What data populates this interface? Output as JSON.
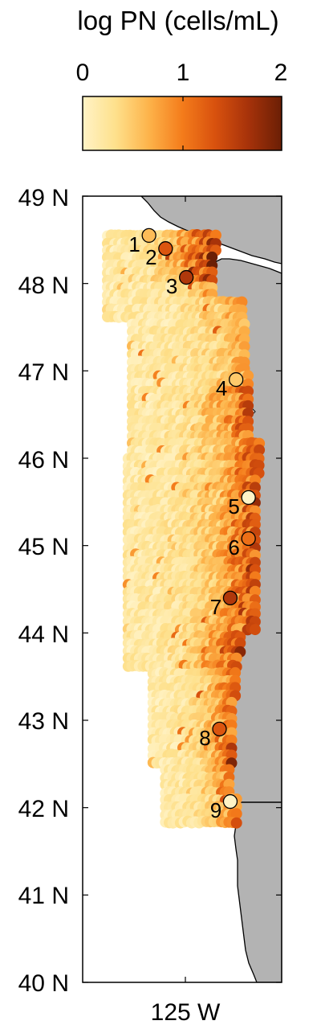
{
  "colorbar": {
    "title": "log PN (cells/mL)",
    "min": 0,
    "max": 2,
    "ticks": [
      "0",
      "1",
      "2"
    ],
    "colors": [
      "#fff3c6",
      "#fee08b",
      "#fdb34a",
      "#f47c1b",
      "#d8510e",
      "#a6320a",
      "#6b1f05"
    ]
  },
  "map": {
    "lat_range": [
      40,
      49
    ],
    "lon_range": [
      -126.2,
      -123.8
    ],
    "lat_labels": [
      "49 N",
      "48 N",
      "47 N",
      "46 N",
      "45 N",
      "44 N",
      "43 N",
      "42 N",
      "41 N",
      "40 N"
    ],
    "lon_label": "125 W",
    "land_color": "#b3b3b3"
  },
  "stations": [
    {
      "label": "1",
      "lat": 48.55,
      "lon": -125.4,
      "value": 0.6
    },
    {
      "label": "2",
      "lat": 48.4,
      "lon": -125.2,
      "value": 1.3
    },
    {
      "label": "3",
      "lat": 48.07,
      "lon": -124.95,
      "value": 1.6
    },
    {
      "label": "4",
      "lat": 46.9,
      "lon": -124.35,
      "value": 0.5
    },
    {
      "label": "5",
      "lat": 45.55,
      "lon": -124.2,
      "value": 0.0
    },
    {
      "label": "6",
      "lat": 45.08,
      "lon": -124.2,
      "value": 1.1
    },
    {
      "label": "7",
      "lat": 44.4,
      "lon": -124.42,
      "value": 1.6
    },
    {
      "label": "8",
      "lat": 42.9,
      "lon": -124.55,
      "value": 1.3
    },
    {
      "label": "9",
      "lat": 42.07,
      "lon": -124.42,
      "value": 0.0
    }
  ]
}
